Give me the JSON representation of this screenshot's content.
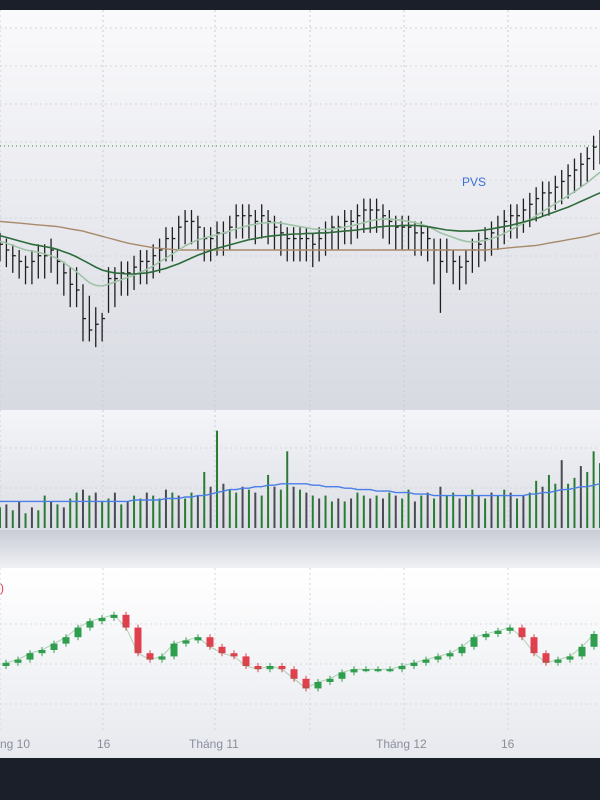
{
  "colors": {
    "background": "#1b1f2a",
    "bar": "#1f1f1f",
    "ma_fast": "#9fc3a6",
    "ma_mid": "#2e6b3a",
    "ma_slow": "#a88a6a",
    "ticker_label": "#3b6fd6",
    "volume_up": "#2b7a34",
    "volume_down": "#4a4a55",
    "volume_ma": "#4a7ee8",
    "candle_up": "#2f9e4f",
    "candle_down": "#e0404e",
    "price_line": "#2f8a3a",
    "indicator_fragment": "#e0404e"
  },
  "labels": {
    "ticker": "PVS",
    "indicator_fragment": ")"
  },
  "chart_data": [
    {
      "type": "bar",
      "subtype": "ohlc",
      "panel": "price",
      "series_name": "PVS",
      "x": [
        0,
        1,
        2,
        3,
        4,
        5,
        6,
        7,
        8,
        9,
        10,
        11,
        12,
        13,
        14,
        15,
        16,
        17,
        18,
        19,
        20,
        21,
        22,
        23,
        24,
        25,
        26,
        27,
        28,
        29,
        30,
        31,
        32,
        33,
        34,
        35,
        36,
        37,
        38,
        39,
        40,
        41,
        42,
        43,
        44,
        45,
        46,
        47,
        48,
        49,
        50,
        51,
        52,
        53,
        54,
        55,
        56,
        57,
        58,
        59,
        60,
        61,
        62,
        63,
        64,
        65,
        66,
        67,
        68,
        69,
        70,
        71,
        72,
        73,
        74,
        75,
        76,
        77,
        78,
        79,
        80,
        81,
        82,
        83,
        84,
        85,
        86,
        87,
        88,
        89,
        90,
        91,
        92,
        93,
        94
      ],
      "high": [
        61,
        60,
        59,
        58,
        57,
        58,
        59,
        59,
        60,
        58,
        56,
        55,
        55,
        52,
        50,
        48,
        47,
        55,
        55,
        56,
        56,
        57,
        58,
        58,
        59,
        60,
        62,
        62,
        64,
        65,
        65,
        64,
        62,
        62,
        63,
        63,
        64,
        66,
        66,
        66,
        65,
        66,
        65,
        64,
        63,
        62,
        62,
        62,
        62,
        61,
        62,
        63,
        64,
        64,
        65,
        65,
        66,
        67,
        67,
        67,
        66,
        65,
        64,
        64,
        64,
        63,
        63,
        62,
        60,
        60,
        60,
        58,
        57,
        58,
        60,
        61,
        62,
        63,
        64,
        65,
        66,
        66,
        67,
        68,
        69,
        70,
        70,
        71,
        72,
        73,
        74,
        75,
        76,
        78,
        79
      ],
      "low": [
        56,
        55,
        54,
        53,
        52,
        52,
        53,
        53,
        54,
        52,
        50,
        48,
        48,
        42,
        42,
        41,
        42,
        47,
        48,
        50,
        50,
        51,
        52,
        52,
        53,
        54,
        56,
        56,
        58,
        59,
        59,
        58,
        56,
        56,
        57,
        57,
        58,
        60,
        60,
        60,
        59,
        60,
        59,
        58,
        57,
        56,
        56,
        56,
        56,
        55,
        56,
        57,
        58,
        58,
        59,
        59,
        60,
        61,
        61,
        61,
        60,
        59,
        58,
        58,
        58,
        57,
        57,
        56,
        52,
        47,
        54,
        52,
        51,
        52,
        54,
        55,
        56,
        57,
        58,
        59,
        60,
        60,
        61,
        62,
        63,
        64,
        64,
        65,
        66,
        67,
        68,
        69,
        70,
        72,
        73
      ],
      "close": [
        59,
        58,
        57,
        56,
        55,
        56,
        57,
        57,
        58,
        56,
        54,
        52,
        51,
        46,
        44,
        45,
        46,
        53,
        53,
        54,
        54,
        55,
        56,
        56,
        57,
        58,
        60,
        60,
        62,
        63,
        63,
        62,
        60,
        60,
        61,
        61,
        62,
        64,
        64,
        64,
        63,
        64,
        63,
        62,
        61,
        60,
        60,
        60,
        60,
        59,
        60,
        61,
        62,
        62,
        63,
        63,
        64,
        65,
        65,
        65,
        64,
        63,
        62,
        62,
        62,
        61,
        61,
        60,
        58,
        56,
        58,
        56,
        55,
        56,
        58,
        59,
        60,
        61,
        62,
        63,
        64,
        64,
        65,
        66,
        67,
        68,
        68,
        69,
        70,
        71,
        72,
        73,
        74,
        76,
        77
      ],
      "ma_fast": [
        59.5,
        59.2,
        58.8,
        58.4,
        58.0,
        57.8,
        57.6,
        57.3,
        57.0,
        56.5,
        55.8,
        55.0,
        54.2,
        53.2,
        52.3,
        51.8,
        51.7,
        52.0,
        52.4,
        52.8,
        53.2,
        53.6,
        54.1,
        54.6,
        55.2,
        55.9,
        56.6,
        57.3,
        58.0,
        58.7,
        59.3,
        59.8,
        60.1,
        60.4,
        60.7,
        61.0,
        61.3,
        61.7,
        62.0,
        62.3,
        62.5,
        62.7,
        62.8,
        62.8,
        62.7,
        62.5,
        62.3,
        62.1,
        61.9,
        61.7,
        61.6,
        61.6,
        61.7,
        61.8,
        62.0,
        62.2,
        62.5,
        62.8,
        63.1,
        63.3,
        63.4,
        63.4,
        63.3,
        63.2,
        63.0,
        62.8,
        62.5,
        62.1,
        61.6,
        61.0,
        60.6,
        60.2,
        59.8,
        59.5,
        59.4,
        59.5,
        59.7,
        60.0,
        60.4,
        60.9,
        61.5,
        62.1,
        62.7,
        63.3,
        64.0,
        64.7,
        65.4,
        66.1,
        66.8,
        67.5,
        68.2,
        69.0,
        69.8,
        70.7,
        71.6
      ],
      "ma_mid": [
        60.5,
        60.2,
        59.9,
        59.6,
        59.3,
        59.0,
        58.8,
        58.6,
        58.4,
        58.1,
        57.7,
        57.3,
        56.8,
        56.2,
        55.6,
        55.0,
        54.5,
        54.2,
        54.0,
        53.9,
        53.8,
        53.8,
        53.9,
        54.0,
        54.2,
        54.5,
        54.8,
        55.2,
        55.6,
        56.1,
        56.6,
        57.1,
        57.5,
        57.9,
        58.3,
        58.6,
        58.9,
        59.2,
        59.5,
        59.8,
        60.0,
        60.2,
        60.4,
        60.5,
        60.6,
        60.7,
        60.8,
        60.8,
        60.9,
        60.9,
        61.0,
        61.0,
        61.1,
        61.2,
        61.3,
        61.4,
        61.5,
        61.7,
        61.8,
        62.0,
        62.1,
        62.2,
        62.2,
        62.3,
        62.3,
        62.3,
        62.2,
        62.1,
        61.9,
        61.7,
        61.5,
        61.4,
        61.3,
        61.3,
        61.3,
        61.4,
        61.5,
        61.7,
        61.9,
        62.1,
        62.3,
        62.6,
        62.9,
        63.2,
        63.5,
        63.9,
        64.3,
        64.7,
        65.1,
        65.5,
        66.0,
        66.5,
        67.0,
        67.5,
        68.0
      ],
      "ma_slow": [
        63.0,
        62.9,
        62.8,
        62.7,
        62.6,
        62.5,
        62.4,
        62.3,
        62.2,
        62.1,
        61.9,
        61.7,
        61.5,
        61.3,
        61.0,
        60.7,
        60.4,
        60.1,
        59.8,
        59.5,
        59.2,
        59.0,
        58.8,
        58.6,
        58.4,
        58.3,
        58.2,
        58.1,
        58.0,
        58.0,
        58.0,
        58.0,
        58.0,
        58.0,
        58.0,
        58.0,
        58.0,
        58.0,
        58.0,
        58.0,
        58.0,
        58.0,
        58.0,
        58.0,
        58.0,
        58.0,
        58.0,
        58.0,
        58.0,
        58.0,
        58.0,
        58.0,
        58.0,
        58.0,
        58.0,
        58.0,
        58.0,
        58.0,
        58.0,
        58.0,
        58.0,
        58.0,
        58.0,
        58.0,
        58.0,
        58.0,
        58.0,
        58.0,
        58.0,
        58.0,
        58.0,
        58.0,
        58.0,
        58.0,
        58.0,
        58.0,
        58.0,
        58.1,
        58.2,
        58.3,
        58.4,
        58.5,
        58.6,
        58.7,
        58.8,
        59.0,
        59.2,
        59.4,
        59.6,
        59.8,
        60.0,
        60.2,
        60.4,
        60.7,
        61.0
      ],
      "ylim": [
        30,
        100
      ]
    },
    {
      "type": "bar",
      "panel": "volume",
      "x": [
        0,
        1,
        2,
        3,
        4,
        5,
        6,
        7,
        8,
        9,
        10,
        11,
        12,
        13,
        14,
        15,
        16,
        17,
        18,
        19,
        20,
        21,
        22,
        23,
        24,
        25,
        26,
        27,
        28,
        29,
        30,
        31,
        32,
        33,
        34,
        35,
        36,
        37,
        38,
        39,
        40,
        41,
        42,
        43,
        44,
        45,
        46,
        47,
        48,
        49,
        50,
        51,
        52,
        53,
        54,
        55,
        56,
        57,
        58,
        59,
        60,
        61,
        62,
        63,
        64,
        65,
        66,
        67,
        68,
        69,
        70,
        71,
        72,
        73,
        74,
        75,
        76,
        77,
        78,
        79,
        80,
        81,
        82,
        83,
        84,
        85,
        86,
        87,
        88,
        89,
        90,
        91,
        92,
        93,
        94
      ],
      "values": [
        0.7,
        0.8,
        0.6,
        0.9,
        0.5,
        0.7,
        0.6,
        1.1,
        0.9,
        0.8,
        0.7,
        1.0,
        1.2,
        1.3,
        1.1,
        1.2,
        0.9,
        1.0,
        1.2,
        0.8,
        0.9,
        1.1,
        1.0,
        1.2,
        1.1,
        1.0,
        1.3,
        1.2,
        1.1,
        1.0,
        1.2,
        1.1,
        1.9,
        1.4,
        3.3,
        1.5,
        1.3,
        1.2,
        1.4,
        1.3,
        1.2,
        1.1,
        1.8,
        1.4,
        1.3,
        2.6,
        1.4,
        1.3,
        1.2,
        1.1,
        1.0,
        1.1,
        0.9,
        1.0,
        0.9,
        1.0,
        1.2,
        1.1,
        1.0,
        1.1,
        1.0,
        1.2,
        1.1,
        1.0,
        1.3,
        0.9,
        1.1,
        1.2,
        1.0,
        1.4,
        1.1,
        1.2,
        1.0,
        1.1,
        1.3,
        1.1,
        1.0,
        1.2,
        1.1,
        1.3,
        1.2,
        1.0,
        1.1,
        1.2,
        1.6,
        1.4,
        1.8,
        1.5,
        2.3,
        1.5,
        1.7,
        2.1,
        1.9,
        2.6,
        2.2
      ],
      "up": [
        true,
        false,
        true,
        false,
        true,
        false,
        true,
        true,
        false,
        true,
        false,
        true,
        true,
        false,
        true,
        false,
        true,
        true,
        false,
        true,
        false,
        true,
        true,
        false,
        true,
        true,
        false,
        true,
        false,
        true,
        true,
        false,
        true,
        false,
        true,
        false,
        true,
        true,
        false,
        true,
        false,
        true,
        true,
        false,
        true,
        true,
        false,
        true,
        false,
        true,
        false,
        true,
        true,
        false,
        true,
        false,
        true,
        true,
        false,
        true,
        false,
        true,
        false,
        true,
        true,
        false,
        true,
        false,
        true,
        false,
        true,
        true,
        false,
        true,
        true,
        false,
        true,
        false,
        true,
        true,
        false,
        true,
        false,
        true,
        true,
        false,
        true,
        true,
        false,
        true,
        true,
        false,
        true,
        true,
        true
      ],
      "ma": [
        0.9,
        0.9,
        0.9,
        0.9,
        0.9,
        0.9,
        0.9,
        0.9,
        0.9,
        0.9,
        0.9,
        0.9,
        0.9,
        0.9,
        0.9,
        0.9,
        0.9,
        0.9,
        0.9,
        0.9,
        0.9,
        0.95,
        0.95,
        0.95,
        0.95,
        0.95,
        1.0,
        1.0,
        1.0,
        1.05,
        1.05,
        1.1,
        1.1,
        1.15,
        1.2,
        1.25,
        1.3,
        1.3,
        1.35,
        1.35,
        1.4,
        1.4,
        1.45,
        1.45,
        1.5,
        1.5,
        1.5,
        1.5,
        1.5,
        1.45,
        1.45,
        1.4,
        1.4,
        1.4,
        1.35,
        1.35,
        1.3,
        1.3,
        1.3,
        1.25,
        1.25,
        1.25,
        1.2,
        1.2,
        1.2,
        1.15,
        1.15,
        1.15,
        1.1,
        1.1,
        1.1,
        1.1,
        1.1,
        1.1,
        1.1,
        1.1,
        1.1,
        1.1,
        1.1,
        1.1,
        1.1,
        1.1,
        1.1,
        1.15,
        1.15,
        1.2,
        1.2,
        1.25,
        1.3,
        1.3,
        1.35,
        1.4,
        1.4,
        1.45,
        1.5
      ],
      "ylim": [
        0,
        4
      ]
    },
    {
      "type": "bar",
      "subtype": "candlestick",
      "panel": "overview",
      "x": [
        0,
        1,
        2,
        3,
        4,
        5,
        6,
        7,
        8,
        9,
        10,
        11,
        12,
        13,
        14,
        15,
        16,
        17,
        18,
        19,
        20,
        21,
        22,
        23,
        24,
        25,
        26,
        27,
        28,
        29,
        30,
        31,
        32,
        33,
        34,
        35,
        36,
        37,
        38,
        39,
        40,
        41,
        42,
        43,
        44,
        45,
        46,
        47,
        48,
        49
      ],
      "open": [
        50,
        51,
        52,
        54,
        55,
        57,
        59,
        62,
        64,
        65,
        66,
        62,
        54,
        52,
        53,
        57,
        58,
        59,
        56,
        54,
        53,
        50,
        49,
        50,
        49,
        46,
        43,
        45,
        46,
        48,
        49,
        49,
        49,
        49,
        50,
        51,
        52,
        53,
        54,
        56,
        59,
        60,
        61,
        62,
        59,
        54,
        51,
        52,
        53,
        56
      ],
      "close": [
        51,
        52,
        54,
        55,
        57,
        59,
        62,
        64,
        65,
        66,
        62,
        54,
        52,
        53,
        57,
        58,
        59,
        56,
        54,
        53,
        50,
        49,
        50,
        49,
        46,
        43,
        45,
        46,
        48,
        49,
        49,
        49,
        49,
        50,
        51,
        52,
        53,
        54,
        56,
        59,
        60,
        61,
        62,
        59,
        54,
        51,
        52,
        53,
        56,
        60
      ],
      "ylim": [
        30,
        80
      ]
    }
  ],
  "time_axis": {
    "tick_labels": [
      "ng 10",
      "16",
      "Tháng 11",
      "Tháng 12",
      "16"
    ]
  }
}
